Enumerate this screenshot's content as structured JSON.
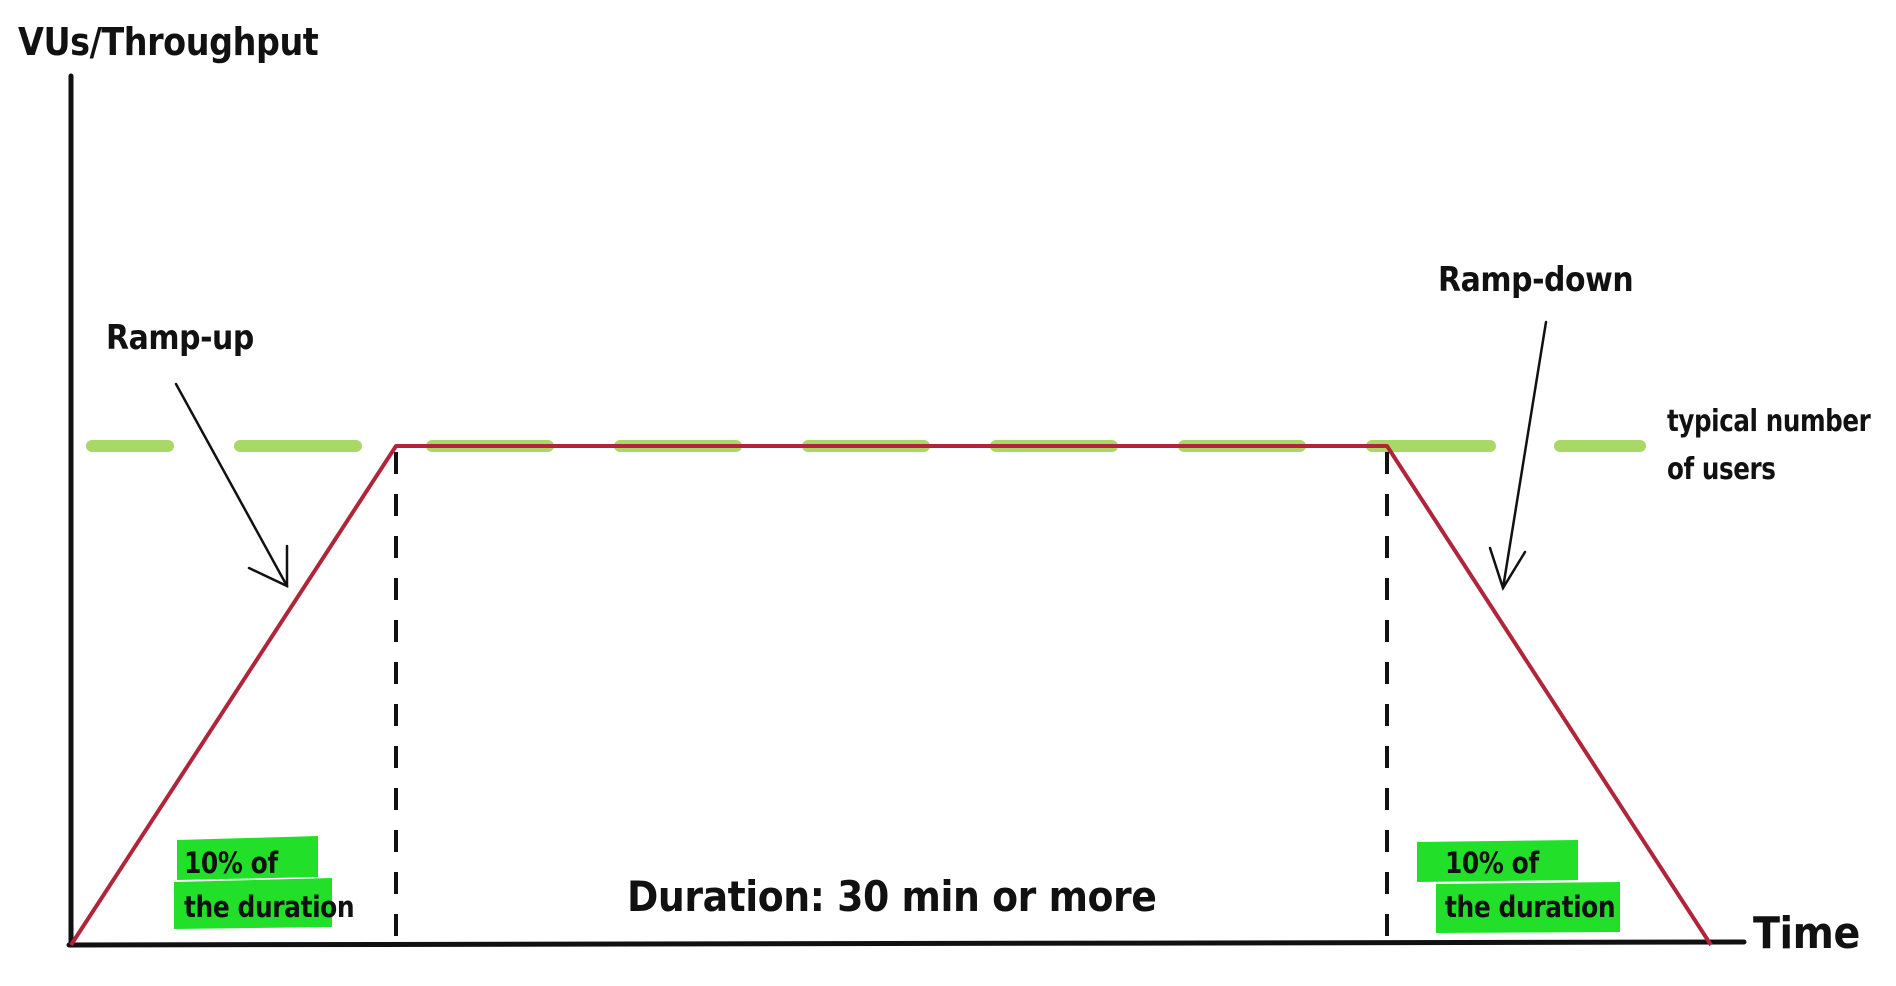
{
  "axes": {
    "y_title": "VUs/Throughput",
    "x_title": "Time"
  },
  "annotations": {
    "ramp_up": "Ramp-up",
    "ramp_down": "Ramp-down",
    "typical_line1": "typical number",
    "typical_line2": "of users",
    "duration": "Duration: 30 min or more"
  },
  "highlights": {
    "left_line1": "10% of",
    "left_line2": "the duration",
    "right_line1": "10% of",
    "right_line2": "the duration"
  },
  "colors": {
    "axis": "#111111",
    "load_profile": "#b0253a",
    "typical_dashes": "#a8d866",
    "highlight": "#22e02a",
    "phase_dividers": "#111111"
  }
}
